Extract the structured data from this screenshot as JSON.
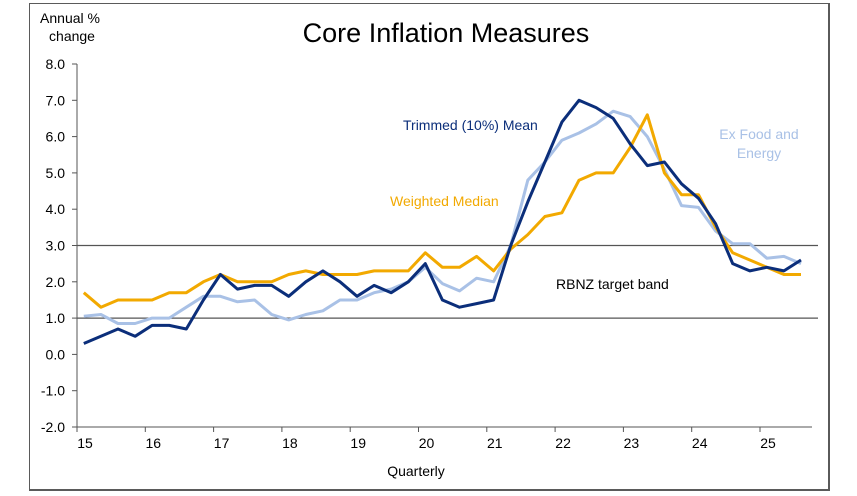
{
  "chart_data": {
    "type": "line",
    "title": "Core Inflation Measures",
    "ylabel": "Annual % change",
    "ylabel_lines": [
      "Annual %",
      "change"
    ],
    "xlabel": "Quarterly",
    "ylim": [
      -2.0,
      8.0
    ],
    "yticks": [
      8.0,
      7.0,
      6.0,
      5.0,
      4.0,
      3.0,
      2.0,
      1.0,
      0.0,
      -1.0,
      -2.0
    ],
    "ytick_labels": [
      "8.0",
      "7.0",
      "6.0",
      "5.0",
      "4.0",
      "3.0",
      "2.0",
      "1.0",
      "0.0",
      "-1.0",
      "-2.0"
    ],
    "xlim": [
      15,
      25.75
    ],
    "xticks": [
      15,
      16,
      17,
      18,
      19,
      20,
      21,
      22,
      23,
      24,
      25
    ],
    "xtick_labels": [
      "15",
      "16",
      "17",
      "18",
      "19",
      "20",
      "21",
      "22",
      "23",
      "24",
      "25"
    ],
    "x_start": 15.1,
    "x_step": 0.25,
    "reference_lines": [
      {
        "value": 3.0,
        "label": ""
      },
      {
        "value": 1.0,
        "label": ""
      }
    ],
    "band_label": "RBNZ target band",
    "grid": false,
    "series": [
      {
        "name": "Ex Food and Energy",
        "label_lines": [
          "Ex Food and",
          "Energy"
        ],
        "color": "#a9c1e6",
        "values": [
          1.05,
          1.1,
          0.85,
          0.85,
          1.0,
          1.0,
          1.3,
          1.6,
          1.6,
          1.45,
          1.5,
          1.1,
          0.95,
          1.1,
          1.2,
          1.5,
          1.5,
          1.7,
          1.8,
          2.0,
          2.4,
          1.95,
          1.75,
          2.1,
          2.0,
          3.0,
          4.8,
          5.3,
          5.9,
          6.1,
          6.35,
          6.7,
          6.55,
          6.0,
          5.1,
          4.1,
          4.05,
          3.4,
          3.05,
          3.05,
          2.65,
          2.7,
          2.5
        ]
      },
      {
        "name": "Weighted Median",
        "label_lines": [
          "Weighted Median"
        ],
        "color": "#f2a900",
        "values": [
          1.7,
          1.3,
          1.5,
          1.5,
          1.5,
          1.7,
          1.7,
          2.0,
          2.2,
          2.0,
          2.0,
          2.0,
          2.2,
          2.3,
          2.2,
          2.2,
          2.2,
          2.3,
          2.3,
          2.3,
          2.8,
          2.4,
          2.4,
          2.7,
          2.3,
          2.9,
          3.3,
          3.8,
          3.9,
          4.8,
          5.0,
          5.0,
          5.7,
          6.6,
          5.0,
          4.4,
          4.4,
          3.5,
          2.8,
          2.6,
          2.4,
          2.2,
          2.2
        ]
      },
      {
        "name": "Trimmed (10%) Mean",
        "label_lines": [
          "Trimmed (10%) Mean"
        ],
        "color": "#0b2e7a",
        "values": [
          0.3,
          0.5,
          0.7,
          0.5,
          0.8,
          0.8,
          0.7,
          1.5,
          2.2,
          1.8,
          1.9,
          1.9,
          1.6,
          2.0,
          2.3,
          2.0,
          1.6,
          1.9,
          1.7,
          2.0,
          2.5,
          1.5,
          1.3,
          1.4,
          1.5,
          3.0,
          4.2,
          5.3,
          6.4,
          7.0,
          6.8,
          6.5,
          5.8,
          5.2,
          5.3,
          4.7,
          4.3,
          3.6,
          2.5,
          2.3,
          2.4,
          2.3,
          2.6
        ]
      }
    ]
  }
}
